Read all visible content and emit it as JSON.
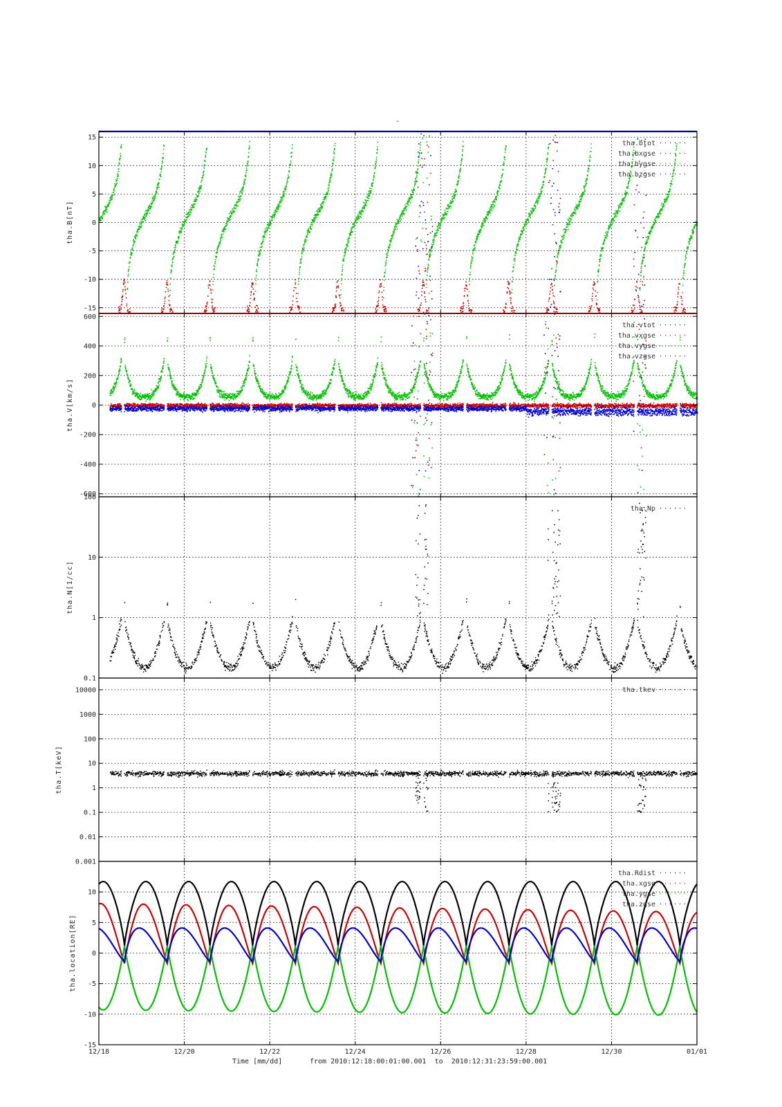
{
  "title": "-",
  "x_axis": {
    "label": "Time [mm/dd]",
    "range_text": "from 2010:12:18:00:01:00.001  to  2010:12:31:23:59:00.001",
    "tick_labels": [
      "12/18",
      "12/20",
      "12/22",
      "12/24",
      "12/26",
      "12/28",
      "12/30",
      "01/01"
    ]
  },
  "colors": {
    "black": "#000000",
    "red": "#d00000",
    "green": "#00c000",
    "blue": "#0000d0",
    "axis_top": "#00008b",
    "axis_sep": "#8b0000"
  },
  "chart_data": [
    {
      "type": "scatter",
      "ylabel": "tha.B[nT]",
      "ylim": [
        -16,
        16
      ],
      "yticks": [
        15,
        10,
        5,
        0,
        -5,
        -10,
        -15
      ],
      "x": {
        "unit": "day",
        "start": "12/18",
        "end": "01/01"
      },
      "grid": true,
      "legend_position": "top-right",
      "series": [
        {
          "name": "tha.btot",
          "color": "#000000"
        },
        {
          "name": "tha.bxgse",
          "color": "#d00000"
        },
        {
          "name": "tha.bygse",
          "color": "#00c000"
        },
        {
          "name": "tha.bzgse",
          "color": "#0000d0"
        }
      ]
    },
    {
      "type": "scatter",
      "ylabel": "tha.V[km/s]",
      "ylim": [
        -620,
        620
      ],
      "yticks": [
        600,
        400,
        200,
        0,
        -200,
        -400,
        -600
      ],
      "grid": true,
      "legend_position": "top-right",
      "series": [
        {
          "name": "tha.vtot",
          "color": "#000000"
        },
        {
          "name": "tha.vxgse",
          "color": "#d00000"
        },
        {
          "name": "tha.vygse",
          "color": "#00c000"
        },
        {
          "name": "tha.vzgse",
          "color": "#0000d0"
        }
      ]
    },
    {
      "type": "scatter",
      "ylabel": "tha.N[1/cc]",
      "yscale": "log",
      "ylim": [
        0.1,
        100
      ],
      "yticks": [
        100,
        10,
        1,
        0.1
      ],
      "ytick_labels": [
        "100",
        "10",
        "1",
        "0.1"
      ],
      "grid": true,
      "legend_position": "top-right",
      "series": [
        {
          "name": "tha.Np",
          "color": "#000000"
        }
      ]
    },
    {
      "type": "scatter",
      "ylabel": "tha.T[keV]",
      "yscale": "log",
      "ylim": [
        0.001,
        30000
      ],
      "yticks": [
        10000,
        1000,
        100,
        10,
        1,
        0.1,
        0.01,
        0.001
      ],
      "ytick_labels": [
        "10000",
        "1000",
        "100",
        "10",
        "1",
        "0.1",
        "0.01",
        "0.001"
      ],
      "grid": true,
      "legend_position": "top-right",
      "series": [
        {
          "name": "tha.tkev",
          "color": "#000000"
        }
      ]
    },
    {
      "type": "line",
      "ylabel": "tha.location[RE]",
      "ylim": [
        -15,
        15
      ],
      "yticks": [
        10,
        5,
        0,
        -5,
        -10,
        -15
      ],
      "grid": true,
      "legend_position": "top-right",
      "orbit_period_days": 1.0,
      "orbit_phase_days": 0.6,
      "series": [
        {
          "name": "tha.Rdist",
          "color": "#000000",
          "max": 11.7,
          "min": 1.2
        },
        {
          "name": "tha.xgse",
          "color": "#d00000",
          "max_start": 8.1,
          "max_end": 6.7,
          "min": -1.7
        },
        {
          "name": "tha.ygse",
          "color": "#00c000",
          "max": 1.2,
          "min_start": -9.3,
          "min_end": -10.2
        },
        {
          "name": "tha.zgse",
          "color": "#0000d0",
          "max": 4.1,
          "min": -1.4
        }
      ]
    }
  ]
}
